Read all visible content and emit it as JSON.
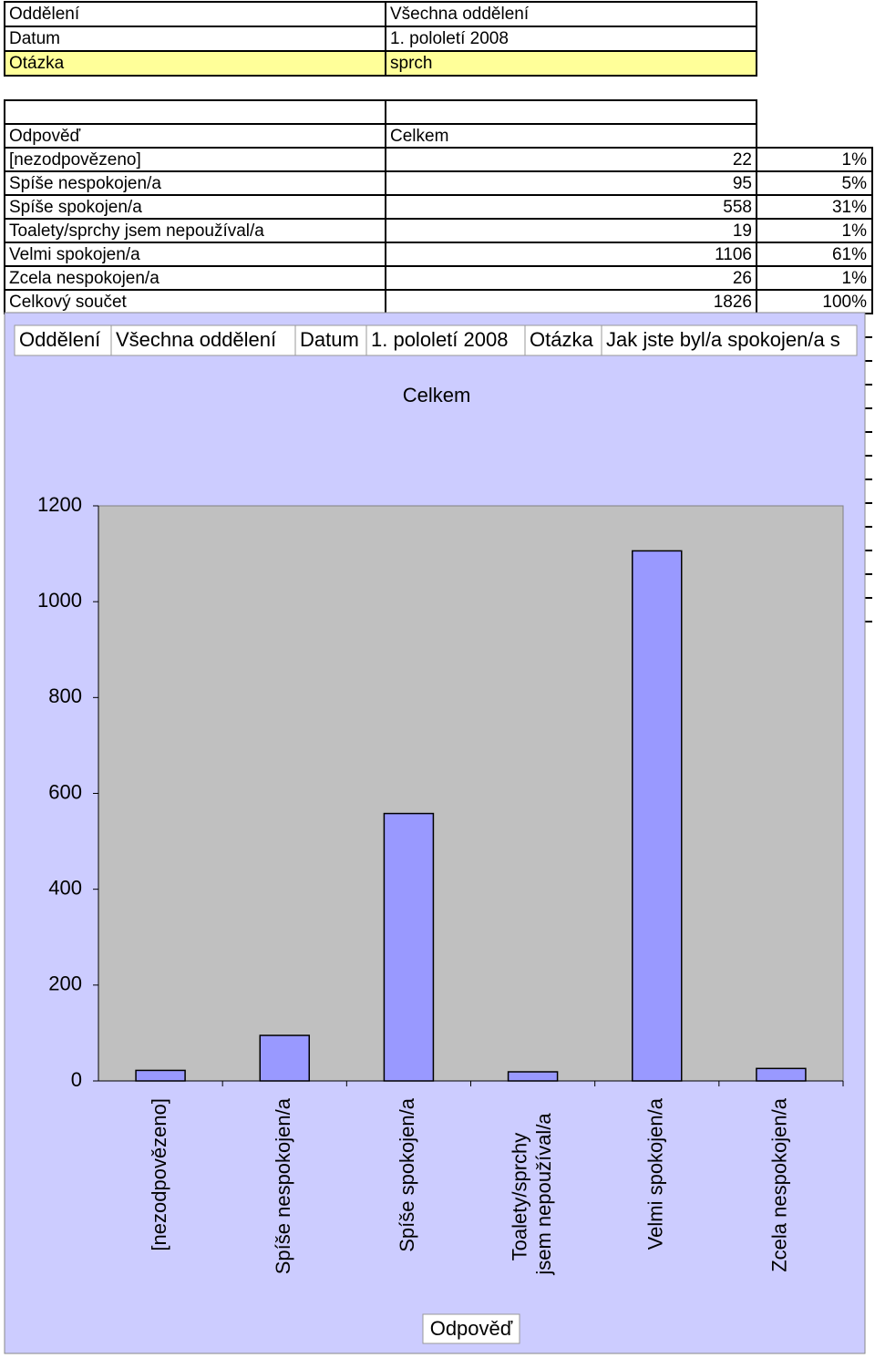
{
  "header_table": {
    "rows": [
      [
        "Oddělení",
        "Všechna oddělení"
      ],
      [
        "Datum",
        "1. pololetí 2008"
      ],
      [
        "Otázka",
        "sprch"
      ]
    ]
  },
  "summary_table": {
    "header": [
      "Odpověď",
      "Celkem"
    ],
    "rows": [
      [
        "[nezodpovězeno]",
        "22",
        "1%"
      ],
      [
        "Spíše nespokojen/a",
        "95",
        "5%"
      ],
      [
        "Spíše spokojen/a",
        "558",
        "31%"
      ],
      [
        "Toalety/sprchy jsem nepoužíval/a",
        "19",
        "1%"
      ],
      [
        "Velmi spokojen/a",
        "1106",
        "61%"
      ],
      [
        "Zcela nespokojen/a",
        "26",
        "1%"
      ],
      [
        "Celkový součet",
        "1826",
        "100%"
      ]
    ]
  },
  "chart_data": {
    "type": "bar",
    "filters": [
      "Oddělení",
      "Všechna oddělení",
      "Datum",
      "1. pololetí 2008",
      "Otázka",
      "Jak jste byl/a spokojen/a s"
    ],
    "title": "Celkem",
    "x_label": "Odpověď",
    "categories": [
      "[nezodpovězeno]",
      "Spíše nespokojen/a",
      "Spíše spokojen/a",
      "Toalety/sprchy jsem nepoužíval/a",
      "Velmi spokojen/a",
      "Zcela nespokojen/a"
    ],
    "values": [
      22,
      95,
      558,
      19,
      1106,
      26
    ],
    "color": "#9999ff",
    "ylim": [
      0,
      1200
    ],
    "yticks": [
      0,
      200,
      400,
      600,
      800,
      1000,
      1200
    ]
  }
}
